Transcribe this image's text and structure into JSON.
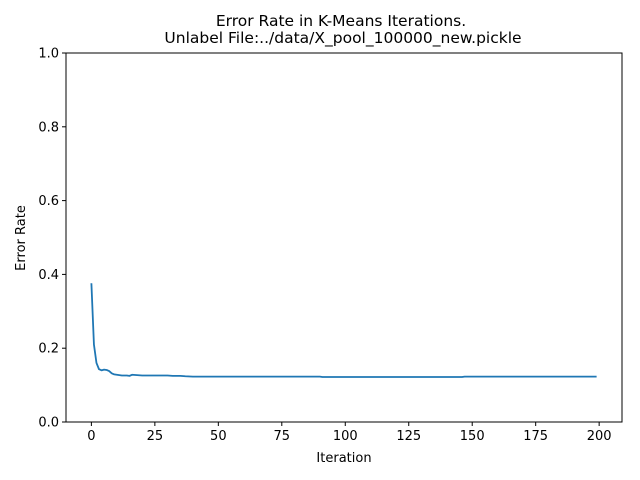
{
  "chart_data": {
    "type": "line",
    "title_line1": "Error Rate in K-Means Iterations.",
    "title_line2": "Unlabel File:../data/X_pool_100000_new.pickle",
    "xlabel": "Iteration",
    "ylabel": "Error Rate",
    "xlim": [
      -10,
      209
    ],
    "ylim": [
      0,
      1
    ],
    "xticks": [
      0,
      25,
      50,
      75,
      100,
      125,
      150,
      175,
      200
    ],
    "yticks": [
      0.0,
      0.2,
      0.4,
      0.6,
      0.8,
      1.0
    ],
    "xtick_labels": [
      "0",
      "25",
      "50",
      "75",
      "100",
      "125",
      "150",
      "175",
      "200"
    ],
    "ytick_labels": [
      "0.0",
      "0.2",
      "0.4",
      "0.6",
      "0.8",
      "1.0"
    ],
    "line_color": "#1f77b4",
    "grid": false,
    "series": [
      {
        "x": [
          0,
          1,
          2,
          3,
          4,
          5,
          6,
          7,
          8,
          9,
          10,
          12,
          14,
          15,
          16,
          18,
          20,
          25,
          30,
          32,
          35,
          37,
          40,
          50,
          60,
          70,
          80,
          90,
          91,
          100,
          110,
          120,
          130,
          140,
          145,
          146,
          147,
          150,
          160,
          170,
          180,
          190,
          199
        ],
        "y": [
          0.376,
          0.21,
          0.16,
          0.143,
          0.14,
          0.142,
          0.141,
          0.138,
          0.132,
          0.129,
          0.128,
          0.126,
          0.126,
          0.125,
          0.128,
          0.127,
          0.126,
          0.126,
          0.126,
          0.125,
          0.125,
          0.124,
          0.123,
          0.123,
          0.123,
          0.123,
          0.123,
          0.123,
          0.122,
          0.122,
          0.122,
          0.122,
          0.122,
          0.122,
          0.122,
          0.122,
          0.123,
          0.123,
          0.123,
          0.123,
          0.123,
          0.123,
          0.123
        ]
      }
    ]
  }
}
